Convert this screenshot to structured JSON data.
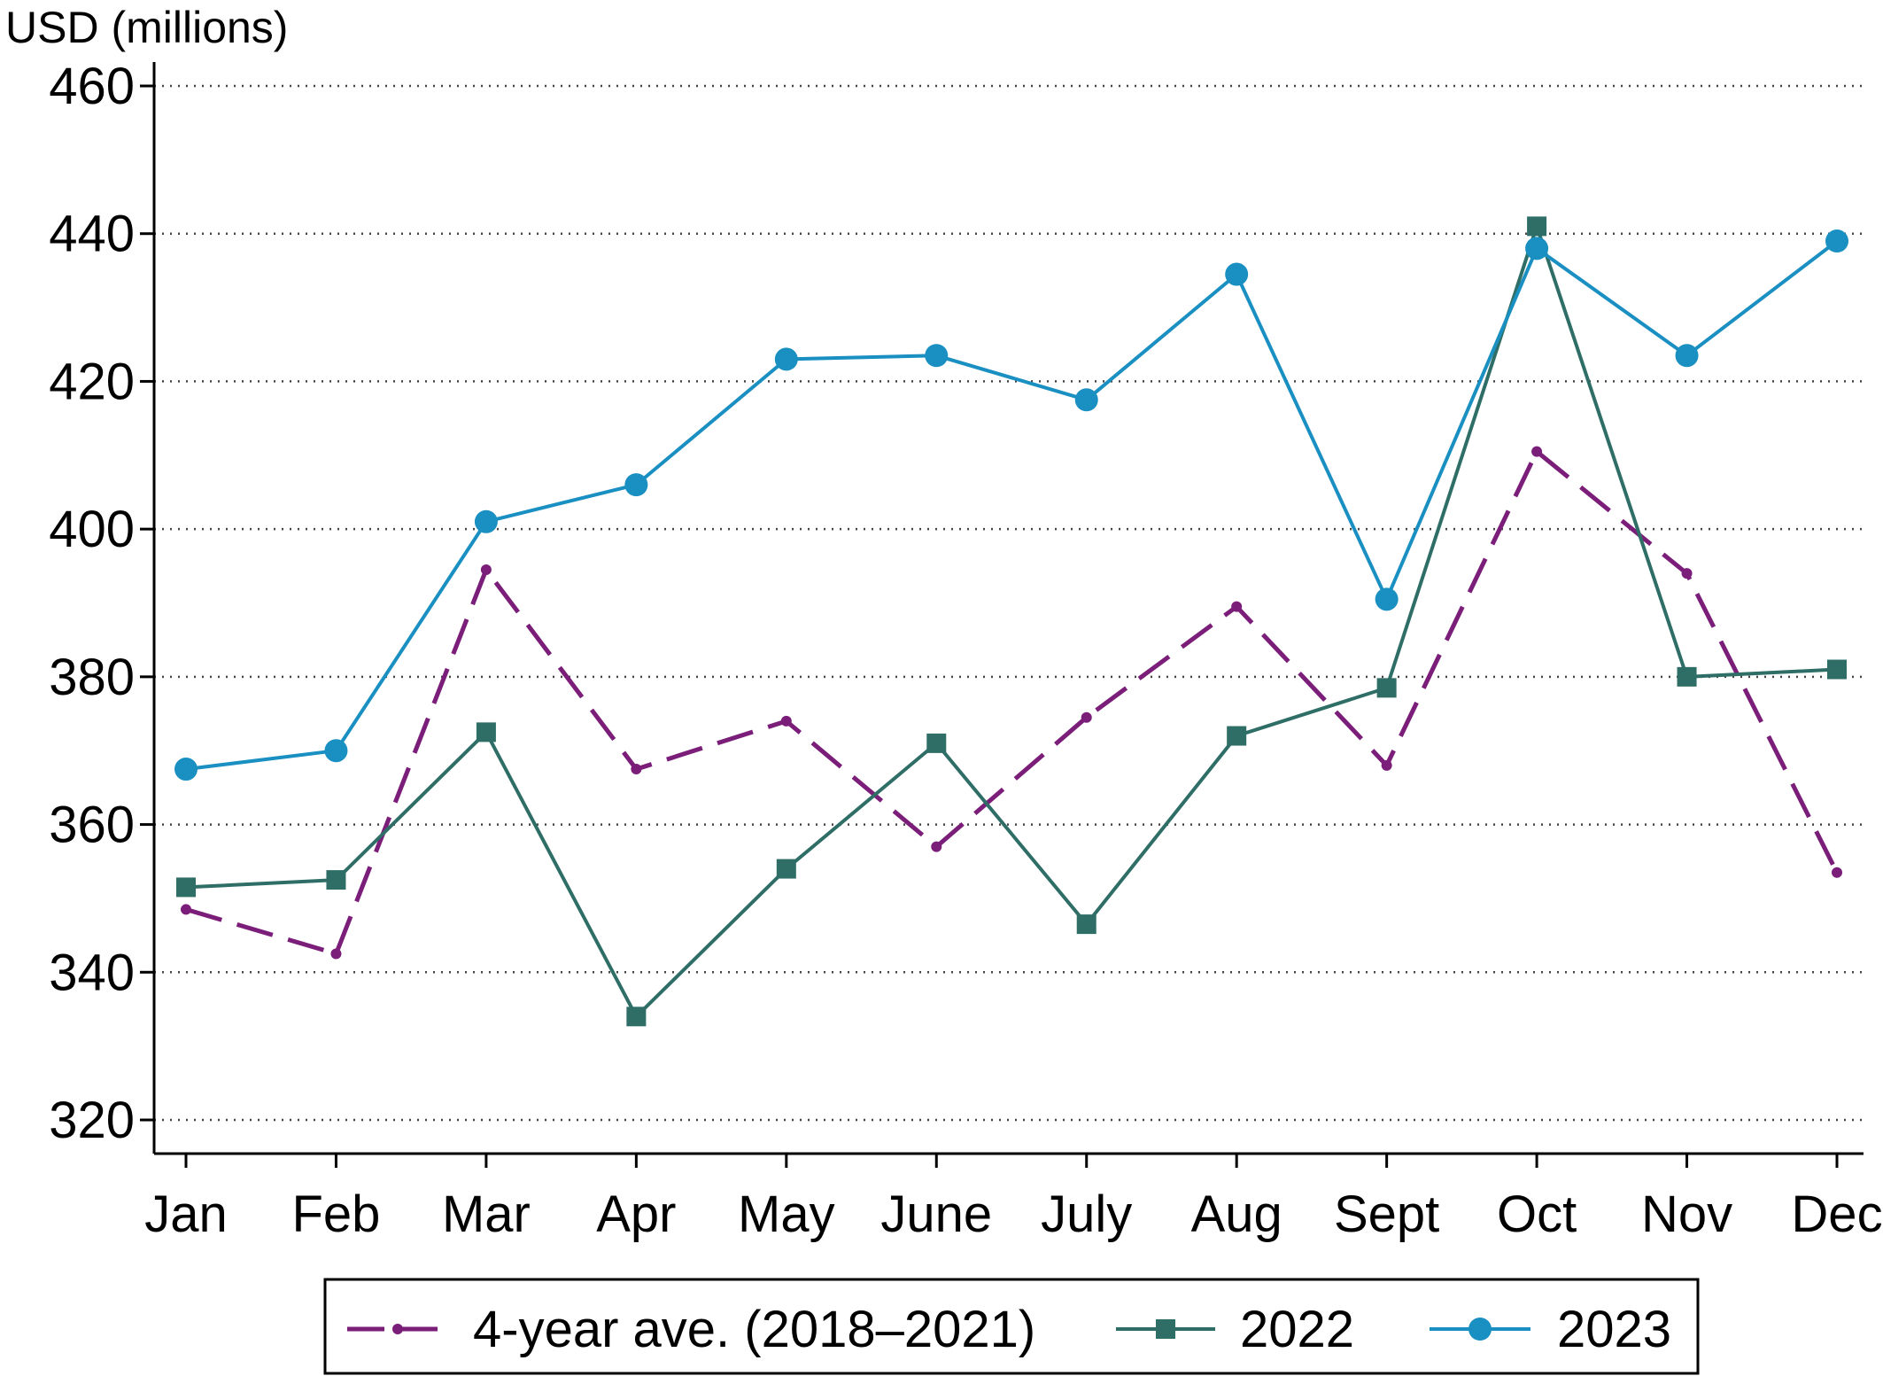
{
  "chart_data": {
    "type": "line",
    "ylabel": "USD (millions)",
    "xlabel": "",
    "title": "",
    "categories": [
      "Jan",
      "Feb",
      "Mar",
      "Apr",
      "May",
      "June",
      "July",
      "Aug",
      "Sept",
      "Oct",
      "Nov",
      "Dec"
    ],
    "ylim": [
      316,
      462
    ],
    "yticks": [
      320,
      340,
      360,
      380,
      400,
      420,
      440,
      460
    ],
    "grid": "horizontal dotted",
    "legend_position": "bottom",
    "series": [
      {
        "name": "4-year ave. (2018–2021)",
        "color": "#7B1E7A",
        "style": "dashed",
        "marker": "small-dot",
        "values": [
          348.5,
          342.5,
          394.5,
          367.5,
          374,
          357,
          374.5,
          389.5,
          368,
          410.5,
          394,
          353.5
        ]
      },
      {
        "name": "2022",
        "color": "#2E6E66",
        "style": "solid",
        "marker": "square",
        "values": [
          351.5,
          352.5,
          372.5,
          334,
          354,
          371,
          346.5,
          372,
          378.5,
          441,
          380,
          381
        ]
      },
      {
        "name": "2023",
        "color": "#1A8FC2",
        "style": "solid",
        "marker": "circle",
        "values": [
          367.5,
          370,
          401,
          406,
          423,
          423.5,
          417.5,
          434.5,
          390.5,
          438,
          423.5,
          439
        ]
      }
    ]
  }
}
